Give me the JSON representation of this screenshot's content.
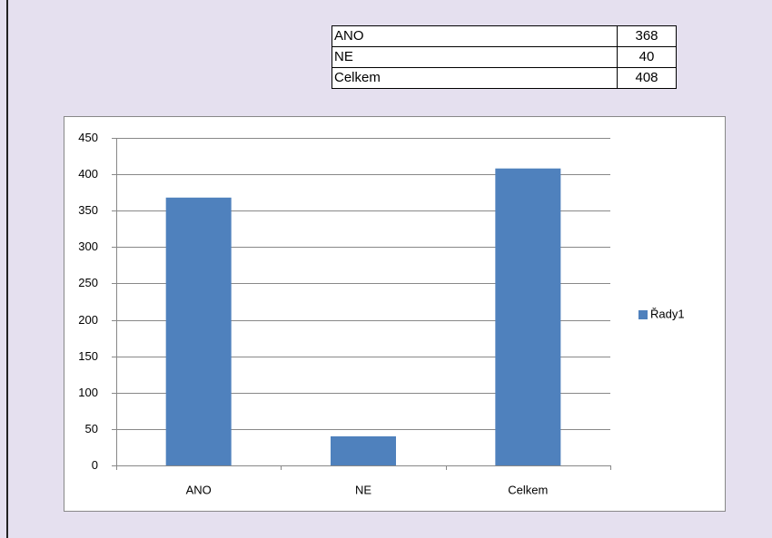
{
  "table": {
    "rows": [
      [
        "ANO",
        368
      ],
      [
        "NE",
        40
      ],
      [
        "Celkem",
        408
      ]
    ]
  },
  "chart_data": {
    "type": "bar",
    "categories": [
      "ANO",
      "NE",
      "Celkem"
    ],
    "series": [
      {
        "name": "Řady1",
        "color": "#4f81bd",
        "values": [
          368,
          40,
          408
        ]
      }
    ],
    "ylim": [
      0,
      450
    ],
    "yticks": [
      0,
      50,
      100,
      150,
      200,
      250,
      300,
      350,
      400,
      450
    ],
    "grid": true,
    "legend": "right"
  }
}
